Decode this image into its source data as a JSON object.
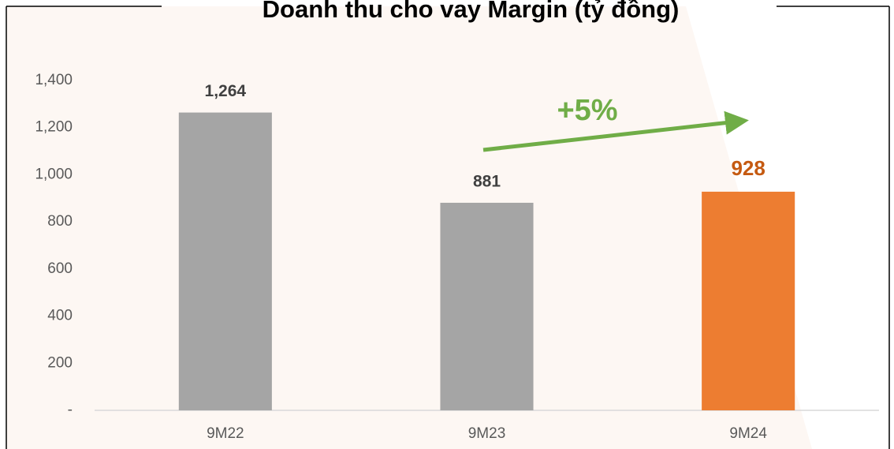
{
  "chart_data": {
    "type": "bar",
    "title": "Doanh thu cho vay Margin (tỷ đồng)",
    "categories": [
      "9M22",
      "9M23",
      "9M24"
    ],
    "values": [
      1264,
      881,
      928
    ],
    "value_labels": [
      "1,264",
      "881",
      "928"
    ],
    "colors": [
      "#a5a5a5",
      "#a5a5a5",
      "#ed7d31"
    ],
    "label_colors": [
      "#404040",
      "#404040",
      "#c55a11"
    ],
    "ylim": [
      0,
      1400
    ],
    "yticks": [
      {
        "value": 0,
        "label": "-"
      },
      200,
      400,
      600,
      800,
      {
        "value": 1000,
        "label": "1,000"
      },
      {
        "value": 1200,
        "label": "1,200"
      },
      {
        "value": 1400,
        "label": "1,400"
      }
    ],
    "annotation": {
      "text": "+5%",
      "color": "#70ad47"
    }
  }
}
